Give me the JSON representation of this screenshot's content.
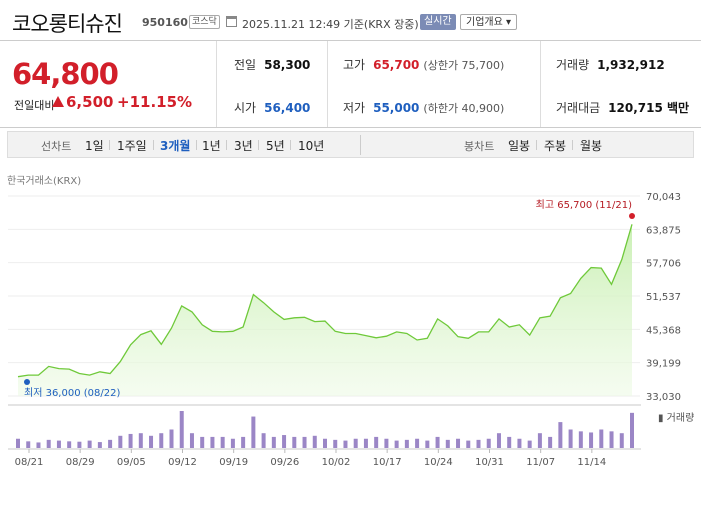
{
  "header": {
    "stock_name": "코오롱티슈진",
    "stock_code": "950160",
    "market": "코스닥",
    "date_info": "2025.11.21 12:49 기준(KRX 장중)",
    "realtime_label": "실시간",
    "company_label": "기업개요 ▾"
  },
  "price": {
    "current": "64,800",
    "change_label": "전일대비",
    "change_value": "6,500",
    "change_pct": "+11.15%",
    "up_color": "#d21f2a"
  },
  "stats": {
    "prev_close_label": "전일",
    "prev_close": "58,300",
    "open_label": "시가",
    "open": "56,400",
    "high_label": "고가",
    "high": "65,700",
    "upper_limit": "(상한가 75,700)",
    "low_label": "저가",
    "low": "55,000",
    "lower_limit": "(하한가 40,900)",
    "volume_label": "거래량",
    "volume": "1,932,912",
    "amount_label": "거래대금",
    "amount": "120,715 백만"
  },
  "period_bar": {
    "chart_label": "선차트",
    "periods": [
      "1일",
      "1주일",
      "3개월",
      "1년",
      "3년",
      "5년",
      "10년"
    ],
    "active_period": "3개월",
    "candle_label": "봉차트",
    "candles": [
      "일봉",
      "주봉",
      "월봉"
    ]
  },
  "chart_source": "한국거래소(KRX)",
  "chart_data": {
    "type": "area",
    "title": "",
    "xlabel": "",
    "ylabel": "",
    "ylim": [
      33030,
      70043
    ],
    "y_ticks": [
      "70,043",
      "63,875",
      "57,706",
      "51,537",
      "45,368",
      "39,199",
      "33,030"
    ],
    "x_ticks": [
      "08/21",
      "08/29",
      "09/05",
      "09/12",
      "09/19",
      "09/26",
      "10/02",
      "10/17",
      "10/24",
      "10/31",
      "11/07",
      "11/14"
    ],
    "high_annotation": "최고 65,700 (11/21)",
    "low_annotation": "최저 36,000 (08/22)",
    "volume_label": "▮ 거래량",
    "line_color": "#6fc93a",
    "series": [
      {
        "values": [
          36600,
          36900,
          36900,
          38500,
          38100,
          38000,
          37200,
          36900,
          37500,
          37200,
          39400,
          42500,
          44400,
          45100,
          42600,
          45600,
          49700,
          48600,
          46200,
          45000,
          44900,
          45000,
          45800,
          51800,
          50300,
          48600,
          47200,
          47500,
          47600,
          46800,
          46900,
          45000,
          44600,
          44600,
          44200,
          43800,
          44100,
          44900,
          44600,
          43400,
          43700,
          47300,
          46000,
          44000,
          43700,
          44900,
          44900,
          47300,
          45800,
          46200,
          44300,
          47500,
          47800,
          51200,
          52000,
          54800,
          56800,
          56700,
          53700,
          58300,
          64800
        ]
      },
      {
        "values": [
          0.25,
          0.18,
          0.15,
          0.22,
          0.2,
          0.18,
          0.17,
          0.2,
          0.16,
          0.22,
          0.33,
          0.38,
          0.4,
          0.33,
          0.4,
          0.5,
          1.0,
          0.4,
          0.3,
          0.3,
          0.3,
          0.25,
          0.3,
          0.85,
          0.4,
          0.3,
          0.35,
          0.3,
          0.3,
          0.33,
          0.25,
          0.22,
          0.2,
          0.25,
          0.25,
          0.3,
          0.25,
          0.2,
          0.22,
          0.25,
          0.2,
          0.3,
          0.22,
          0.25,
          0.2,
          0.22,
          0.25,
          0.4,
          0.3,
          0.25,
          0.2,
          0.4,
          0.3,
          0.7,
          0.5,
          0.45,
          0.42,
          0.5,
          0.45,
          0.4,
          0.95
        ]
      }
    ]
  }
}
